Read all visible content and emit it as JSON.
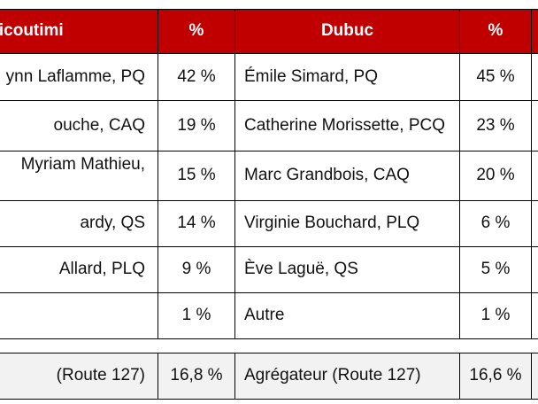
{
  "table": {
    "header": [
      "hicoutimi",
      "%",
      "Dubuc",
      "%"
    ],
    "rows": [
      [
        "ynn Laflamme, PQ",
        "42 %",
        "Émile Simard, PQ",
        "45 %"
      ],
      [
        "ouche, CAQ",
        "19 %",
        "Catherine Morissette, PCQ",
        "23 %"
      ],
      [
        "Myriam Mathieu,",
        "15 %",
        "Marc Grandbois, CAQ",
        "20 %"
      ],
      [
        "ardy, QS",
        "14 %",
        "Virginie Bouchard, PLQ",
        "6 %"
      ],
      [
        "Allard, PLQ",
        "9 %",
        "Ève Laguë, QS",
        "5 %"
      ],
      [
        null,
        "1 %",
        "Autre",
        "1 %"
      ]
    ],
    "footer": [
      "(Route 127)",
      "16,8 %",
      "Agrégateur (Route 127)",
      "16,6 %"
    ]
  }
}
